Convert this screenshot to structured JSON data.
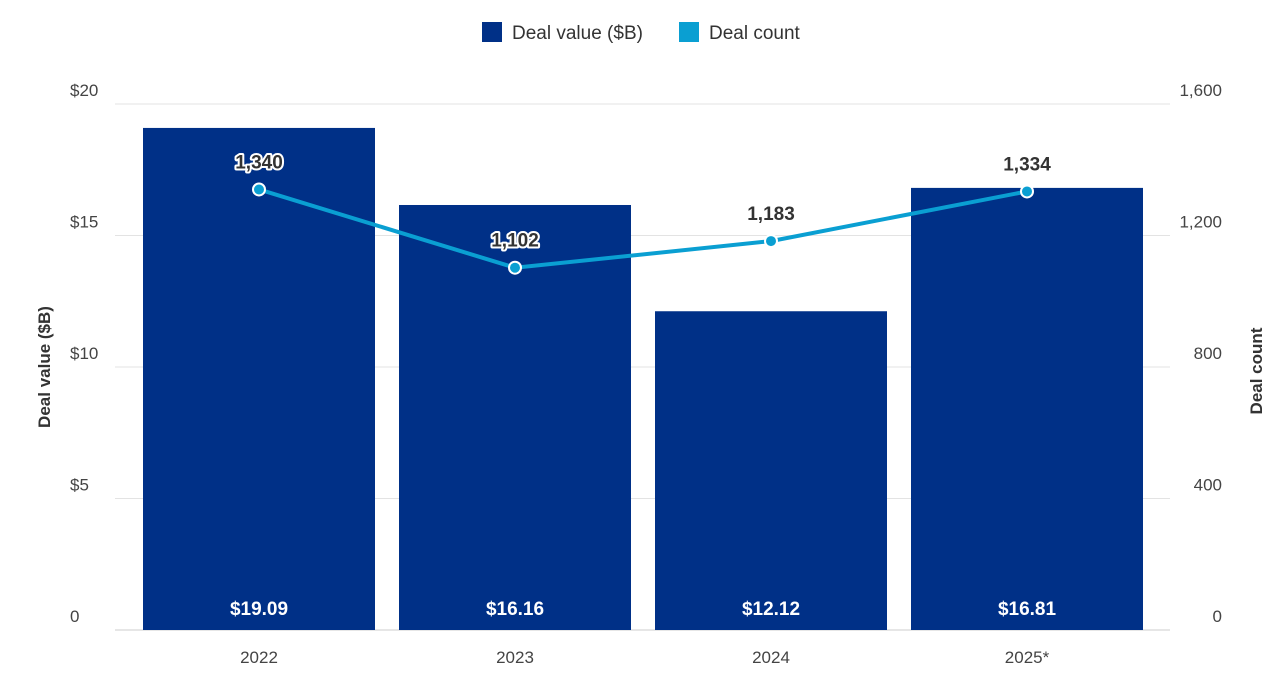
{
  "chart_data": {
    "type": "bar",
    "categories": [
      "2022",
      "2023",
      "2024",
      "2025*"
    ],
    "series": [
      {
        "name": "Deal value ($B)",
        "type": "bar",
        "axis": "left",
        "values": [
          19.09,
          16.16,
          12.12,
          16.81
        ],
        "labels": [
          "$19.09",
          "$16.16",
          "$12.12",
          "$16.81"
        ],
        "color": "#003087"
      },
      {
        "name": "Deal count",
        "type": "line",
        "axis": "right",
        "values": [
          1340,
          1102,
          1183,
          1334
        ],
        "labels": [
          "1,340",
          "1,102",
          "1,183",
          "1,334"
        ],
        "color": "#0a9fd2"
      }
    ],
    "ylabel": "Deal value ($B)",
    "y2label": "Deal count",
    "ylim": [
      0,
      20
    ],
    "y2lim": [
      0,
      1600
    ],
    "yticks": [
      0,
      5,
      10,
      15,
      20
    ],
    "ytick_labels": [
      "0",
      "$5",
      "$10",
      "$15",
      "$20"
    ],
    "y2ticks": [
      0,
      400,
      800,
      1200,
      1600
    ],
    "y2tick_labels": [
      "0",
      "400",
      "800",
      "1,200",
      "1,600"
    ],
    "grid": true,
    "legend": "top-center"
  }
}
